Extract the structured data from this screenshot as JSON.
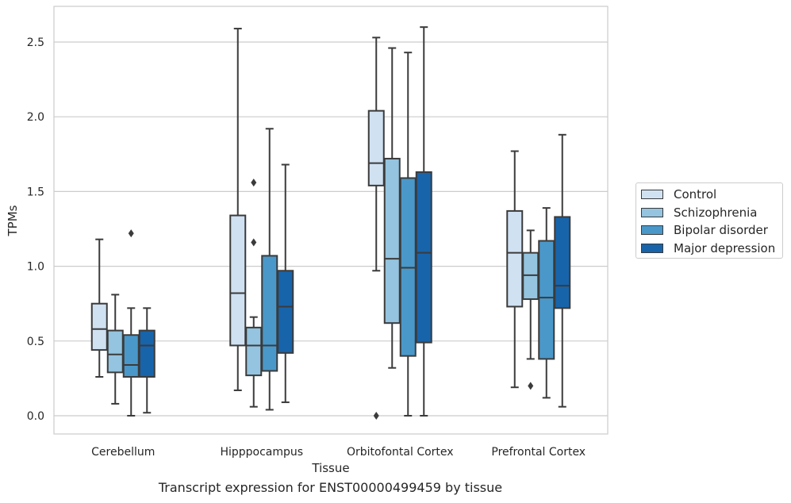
{
  "chart_data": {
    "type": "box",
    "xlabel": "Tissue",
    "ylabel": "TPMs",
    "caption": "Transcript expression for ENST00000499459 by tissue",
    "ylim": [
      -0.12,
      2.72
    ],
    "yticks": [
      0.0,
      0.5,
      1.0,
      1.5,
      2.0,
      2.5
    ],
    "ytick_labels": [
      "0.0",
      "0.5",
      "1.0",
      "1.5",
      "2.0",
      "2.5"
    ],
    "grid": "horizontal",
    "legend_position": "outside-right",
    "categories": [
      "Cerebellum",
      "Hipppocampus",
      "Orbitofontal Cortex",
      "Prefrontal Cortex"
    ],
    "series": [
      {
        "name": "Control",
        "color": "#d0e1f2",
        "boxes": [
          {
            "whisker_low": 0.26,
            "q1": 0.44,
            "median": 0.58,
            "q3": 0.75,
            "whisker_high": 1.18,
            "outliers": []
          },
          {
            "whisker_low": 0.17,
            "q1": 0.47,
            "median": 0.82,
            "q3": 1.34,
            "whisker_high": 2.59,
            "outliers": []
          },
          {
            "whisker_low": 0.97,
            "q1": 1.54,
            "median": 1.69,
            "q3": 2.04,
            "whisker_high": 2.53,
            "outliers": [
              0.0
            ]
          },
          {
            "whisker_low": 0.19,
            "q1": 0.73,
            "median": 1.09,
            "q3": 1.37,
            "whisker_high": 1.77,
            "outliers": []
          }
        ]
      },
      {
        "name": "Schizophrenia",
        "color": "#94c4df",
        "boxes": [
          {
            "whisker_low": 0.08,
            "q1": 0.29,
            "median": 0.41,
            "q3": 0.57,
            "whisker_high": 0.81,
            "outliers": []
          },
          {
            "whisker_low": 0.06,
            "q1": 0.27,
            "median": 0.47,
            "q3": 0.59,
            "whisker_high": 0.66,
            "outliers": [
              1.16,
              1.56
            ]
          },
          {
            "whisker_low": 0.32,
            "q1": 0.62,
            "median": 1.05,
            "q3": 1.72,
            "whisker_high": 2.46,
            "outliers": []
          },
          {
            "whisker_low": 0.38,
            "q1": 0.78,
            "median": 0.94,
            "q3": 1.09,
            "whisker_high": 1.24,
            "outliers": [
              0.2
            ]
          }
        ]
      },
      {
        "name": "Bipolar disorder",
        "color": "#4a98c9",
        "boxes": [
          {
            "whisker_low": 0.0,
            "q1": 0.26,
            "median": 0.34,
            "q3": 0.54,
            "whisker_high": 0.72,
            "outliers": [
              1.22
            ]
          },
          {
            "whisker_low": 0.04,
            "q1": 0.3,
            "median": 0.47,
            "q3": 1.07,
            "whisker_high": 1.92,
            "outliers": []
          },
          {
            "whisker_low": 0.0,
            "q1": 0.4,
            "median": 0.99,
            "q3": 1.59,
            "whisker_high": 2.43,
            "outliers": []
          },
          {
            "whisker_low": 0.12,
            "q1": 0.38,
            "median": 0.79,
            "q3": 1.17,
            "whisker_high": 1.39,
            "outliers": []
          }
        ]
      },
      {
        "name": "Major depression",
        "color": "#1764ab",
        "boxes": [
          {
            "whisker_low": 0.02,
            "q1": 0.26,
            "median": 0.47,
            "q3": 0.57,
            "whisker_high": 0.72,
            "outliers": []
          },
          {
            "whisker_low": 0.09,
            "q1": 0.42,
            "median": 0.73,
            "q3": 0.97,
            "whisker_high": 1.68,
            "outliers": []
          },
          {
            "whisker_low": 0.0,
            "q1": 0.49,
            "median": 1.09,
            "q3": 1.63,
            "whisker_high": 2.6,
            "outliers": []
          },
          {
            "whisker_low": 0.06,
            "q1": 0.72,
            "median": 0.87,
            "q3": 1.33,
            "whisker_high": 1.88,
            "outliers": []
          }
        ]
      }
    ]
  }
}
